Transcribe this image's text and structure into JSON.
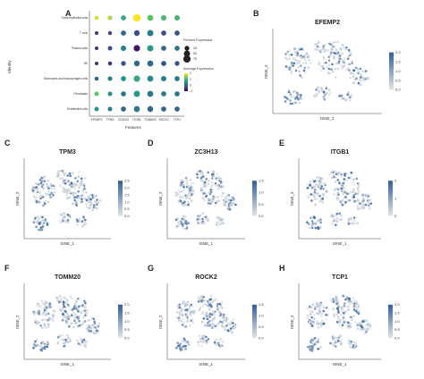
{
  "panel_a": {
    "label": "A",
    "ylabel": "Identity",
    "xlabel": "Features",
    "legend_pct_title": "Percent Expressed",
    "legend_pct_values": [
      "25",
      "50",
      "75"
    ],
    "legend_avg_title": "Average Expression",
    "legend_avg_ticks": [
      "2",
      "1",
      "0",
      "-1"
    ]
  },
  "chart_data": [
    {
      "type": "scatter",
      "subtype": "dotplot",
      "panel": "A",
      "xlabel": "Features",
      "ylabel": "Identity",
      "rows": [
        "Tumor/epithelial cells",
        "T cells",
        "Plasma cells",
        "NK",
        "Monocytes and Macrophages cells",
        "Fibroblasts",
        "Endothelial cells"
      ],
      "columns": [
        "EFEMP2",
        "TPM3",
        "ZC3H13",
        "ITGB1",
        "TOMM20",
        "ROCK2",
        "TCP1"
      ],
      "pct_expressed": [
        [
          15,
          20,
          30,
          85,
          45,
          35,
          35
        ],
        [
          10,
          15,
          30,
          40,
          50,
          30,
          30
        ],
        [
          10,
          20,
          35,
          55,
          50,
          30,
          30
        ],
        [
          10,
          15,
          25,
          40,
          45,
          30,
          25
        ],
        [
          15,
          20,
          30,
          55,
          45,
          35,
          30
        ],
        [
          20,
          20,
          30,
          50,
          45,
          30,
          30
        ],
        [
          20,
          20,
          30,
          45,
          40,
          30,
          30
        ]
      ],
      "avg_expression": [
        [
          1.8,
          1.6,
          0.8,
          2.0,
          1.2,
          1.0,
          1.0
        ],
        [
          -0.5,
          -0.3,
          0.0,
          -0.3,
          0.2,
          -0.3,
          -0.2
        ],
        [
          -0.5,
          -0.3,
          0.3,
          -0.8,
          0.6,
          0.0,
          0.2
        ],
        [
          -0.5,
          -0.5,
          -0.2,
          0.0,
          0.0,
          -0.2,
          -0.2
        ],
        [
          0.0,
          0.2,
          0.5,
          0.8,
          0.4,
          0.3,
          0.2
        ],
        [
          1.2,
          0.5,
          0.2,
          0.6,
          0.2,
          0.2,
          0.2
        ],
        [
          0.6,
          0.3,
          0.0,
          0.2,
          0.0,
          0.0,
          0.0
        ]
      ],
      "size_legend": [
        25,
        50,
        75
      ],
      "color_legend_ticks": [
        2,
        1,
        0,
        -1
      ],
      "color_scale": [
        "#440154",
        "#3b528b",
        "#21918c",
        "#5ec962",
        "#fde725"
      ]
    },
    {
      "type": "scatter",
      "subtype": "tsne",
      "panel": "B",
      "title": "EFEMP2",
      "xlabel": "tSNE_1",
      "ylabel": "tSNE_2",
      "colorbar_ticks": [
        "2.0",
        "1.5",
        "1.0",
        "0.5",
        "0.0"
      ],
      "color_low": "#e6e6e6",
      "color_high": "#2f5f9a"
    },
    {
      "type": "scatter",
      "subtype": "tsne",
      "panel": "C",
      "title": "TPM3",
      "xlabel": "tSNE_1",
      "ylabel": "tSNE_2",
      "colorbar_ticks": [
        "2.5",
        "2.0",
        "1.5",
        "1.0",
        "0.5",
        "0.0"
      ],
      "color_low": "#e6e6e6",
      "color_high": "#2f5f9a"
    },
    {
      "type": "scatter",
      "subtype": "tsne",
      "panel": "D",
      "title": "ZC3H13",
      "xlabel": "tSNE_1",
      "ylabel": "tSNE_2",
      "colorbar_ticks": [
        "1.5",
        "1.0",
        "0.5",
        "0.0"
      ],
      "color_low": "#e6e6e6",
      "color_high": "#2f5f9a"
    },
    {
      "type": "scatter",
      "subtype": "tsne",
      "panel": "E",
      "title": "ITGB1",
      "xlabel": "tSNE_1",
      "ylabel": "tSNE_2",
      "colorbar_ticks": [
        "2",
        "1",
        "0"
      ],
      "color_low": "#e6e6e6",
      "color_high": "#2f5f9a"
    },
    {
      "type": "scatter",
      "subtype": "tsne",
      "panel": "F",
      "title": "TOMM20",
      "xlabel": "tSNE_1",
      "ylabel": "tSNE_2",
      "colorbar_ticks": [
        "2.0",
        "1.5",
        "1.0",
        "0.5",
        "0.0"
      ],
      "color_low": "#e6e6e6",
      "color_high": "#2f5f9a"
    },
    {
      "type": "scatter",
      "subtype": "tsne",
      "panel": "G",
      "title": "ROCK2",
      "xlabel": "tSNE_1",
      "ylabel": "tSNE_2",
      "colorbar_ticks": [
        "1.5",
        "1.0",
        "0.5",
        "0.0"
      ],
      "color_low": "#e6e6e6",
      "color_high": "#2f5f9a"
    },
    {
      "type": "scatter",
      "subtype": "tsne",
      "panel": "H",
      "title": "TCP1",
      "xlabel": "tSNE_1",
      "ylabel": "tSNE_2",
      "colorbar_ticks": [
        "2.0",
        "1.5",
        "1.0",
        "0.5",
        "0.0"
      ],
      "color_low": "#e6e6e6",
      "color_high": "#2f5f9a"
    }
  ]
}
